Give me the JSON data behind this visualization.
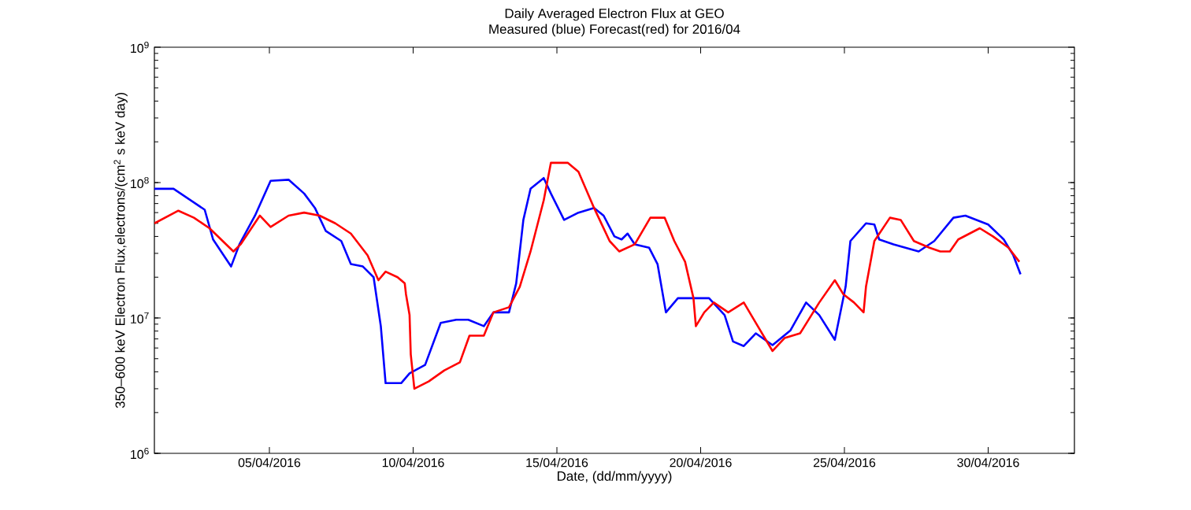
{
  "chart_data": {
    "type": "line",
    "title": "Daily Averaged Electron Flux at GEO",
    "subtitle": "Measured (blue) Forecast(red) for 2016/04",
    "xlabel": "Date, (dd/mm/yyyy)",
    "ylabel": "350–600 keV Electron Flux,electrons/(cm$^{2}$ s keV day)",
    "log": "y",
    "xlim": [
      "2016-04-01",
      "2016-05-03"
    ],
    "xticks": [
      {
        "value": "2016-04-05",
        "label": "05/04/2016"
      },
      {
        "value": "2016-04-10",
        "label": "10/04/2016"
      },
      {
        "value": "2016-04-15",
        "label": "15/04/2016"
      },
      {
        "value": "2016-04-20",
        "label": "20/04/2016"
      },
      {
        "value": "2016-04-25",
        "label": "25/04/2016"
      },
      {
        "value": "2016-04-30",
        "label": "30/04/2016"
      }
    ],
    "ylim": [
      1000000,
      1000000000
    ],
    "yticks": [
      {
        "value": 1000000,
        "label": "10$^{6}$"
      },
      {
        "value": 10000000,
        "label": "10$^{7}$"
      },
      {
        "value": 100000000,
        "label": "10$^{8}$"
      },
      {
        "value": 1000000000,
        "label": "10$^{9}$"
      }
    ],
    "series": [
      {
        "color": "#0000ff",
        "x": [
          "2016-04-01T00:00",
          "2016-04-01T16:00",
          "2016-04-02T18:00",
          "2016-04-03T01:00",
          "2016-04-03T16:00",
          "2016-04-03T23:00",
          "2016-04-04T12:00",
          "2016-04-05T01:00",
          "2016-04-05T16:00",
          "2016-04-06T05:00",
          "2016-04-06T14:00",
          "2016-04-06T23:00",
          "2016-04-07T12:00",
          "2016-04-07T20:00",
          "2016-04-08T06:00",
          "2016-04-08T15:00",
          "2016-04-08T21:00",
          "2016-04-09T01:00",
          "2016-04-09T14:00",
          "2016-04-09T21:00",
          "2016-04-10T10:00",
          "2016-04-10T23:00",
          "2016-04-11T12:00",
          "2016-04-11T22:00",
          "2016-04-12T11:00",
          "2016-04-12T19:00",
          "2016-04-13T08:00",
          "2016-04-13T14:00",
          "2016-04-13T20:00",
          "2016-04-14T02:00",
          "2016-04-14T13:00",
          "2016-04-14T19:00",
          "2016-04-15T06:00",
          "2016-04-15T18:00",
          "2016-04-16T07:00",
          "2016-04-16T15:00",
          "2016-04-17T00:00",
          "2016-04-17T06:00",
          "2016-04-17T11:00",
          "2016-04-17T17:00",
          "2016-04-18T05:00",
          "2016-04-18T12:00",
          "2016-04-18T19:00",
          "2016-04-19T05:00",
          "2016-04-20T07:00",
          "2016-04-20T20:00",
          "2016-04-21T03:00",
          "2016-04-21T12:00",
          "2016-04-21T22:00",
          "2016-04-22T12:00",
          "2016-04-23T03:00",
          "2016-04-23T16:00",
          "2016-04-24T03:00",
          "2016-04-24T16:00",
          "2016-04-25T01:00",
          "2016-04-25T05:00",
          "2016-04-25T18:00",
          "2016-04-26T01:00",
          "2016-04-26T05:00",
          "2016-04-26T17:00",
          "2016-04-27T14:00",
          "2016-04-28T03:00",
          "2016-04-28T19:00",
          "2016-04-29T05:00",
          "2016-04-30T00:00",
          "2016-04-30T13:00",
          "2016-04-30T21:00",
          "2016-05-01T03:00"
        ],
        "values": [
          90000000,
          90000000,
          63000000,
          38000000,
          24000000,
          35000000,
          57000000,
          103000000,
          105000000,
          83000000,
          65000000,
          44000000,
          37000000,
          25000000,
          24000000,
          20000000,
          8700000,
          3300000,
          3300000,
          3900000,
          4500000,
          9200000,
          9700000,
          9700000,
          8700000,
          11000000,
          11000000,
          18000000,
          53000000,
          90000000,
          108000000,
          83000000,
          53000000,
          60000000,
          65000000,
          57000000,
          40000000,
          38000000,
          42000000,
          35000000,
          33000000,
          25000000,
          11000000,
          14000000,
          14000000,
          10500000,
          6700000,
          6200000,
          7700000,
          6300000,
          8100000,
          13000000,
          10500000,
          6900000,
          17000000,
          37000000,
          50000000,
          49000000,
          38000000,
          35000000,
          31000000,
          37000000,
          55000000,
          57000000,
          49000000,
          38000000,
          29000000,
          21000000
        ]
      },
      {
        "color": "#ff0000",
        "x": [
          "2016-04-01T00:00",
          "2016-04-01T20:00",
          "2016-04-02T09:00",
          "2016-04-02T22:00",
          "2016-04-03T18:00",
          "2016-04-04T00:00",
          "2016-04-04T16:00",
          "2016-04-05T01:00",
          "2016-04-05T16:00",
          "2016-04-06T05:00",
          "2016-04-06T18:00",
          "2016-04-07T07:00",
          "2016-04-07T20:00",
          "2016-04-08T10:00",
          "2016-04-08T19:00",
          "2016-04-09T01:00",
          "2016-04-09T11:00",
          "2016-04-09T17:00",
          "2016-04-09T18:00",
          "2016-04-09T21:00",
          "2016-04-09T22:00",
          "2016-04-10T01:00",
          "2016-04-10T13:00",
          "2016-04-11T02:00",
          "2016-04-11T15:00",
          "2016-04-11T23:00",
          "2016-04-12T11:00",
          "2016-04-12T19:00",
          "2016-04-13T08:00",
          "2016-04-13T17:00",
          "2016-04-14T02:00",
          "2016-04-14T13:00",
          "2016-04-14T19:00",
          "2016-04-15T09:00",
          "2016-04-15T18:00",
          "2016-04-16T07:00",
          "2016-04-16T20:00",
          "2016-04-17T04:00",
          "2016-04-17T17:00",
          "2016-04-18T06:00",
          "2016-04-18T18:00",
          "2016-04-19T02:00",
          "2016-04-19T11:00",
          "2016-04-19T18:00",
          "2016-04-19T20:00",
          "2016-04-20T03:00",
          "2016-04-20T11:00",
          "2016-04-20T23:00",
          "2016-04-21T12:00",
          "2016-04-21T22:00",
          "2016-04-22T12:00",
          "2016-04-22T22:00",
          "2016-04-23T11:00",
          "2016-04-24T03:00",
          "2016-04-24T16:00",
          "2016-04-24T23:00",
          "2016-04-25T08:00",
          "2016-04-25T16:00",
          "2016-04-25T18:00",
          "2016-04-26T01:00",
          "2016-04-26T14:00",
          "2016-04-26T23:00",
          "2016-04-27T10:00",
          "2016-04-27T23:00",
          "2016-04-28T08:00",
          "2016-04-28T16:00",
          "2016-04-28T23:00",
          "2016-04-29T17:00",
          "2016-04-30T04:00",
          "2016-04-30T17:00",
          "2016-05-01T02:00"
        ],
        "values": [
          50000000,
          62000000,
          55000000,
          46000000,
          31000000,
          35000000,
          57000000,
          47000000,
          57000000,
          60000000,
          57000000,
          50000000,
          42000000,
          29000000,
          19000000,
          22000000,
          20000000,
          18000000,
          15000000,
          10500000,
          5400000,
          3000000,
          3400000,
          4100000,
          4700000,
          7400000,
          7400000,
          11000000,
          12000000,
          17000000,
          31000000,
          74000000,
          140000000,
          140000000,
          120000000,
          65000000,
          37000000,
          31000000,
          35000000,
          55000000,
          55000000,
          37000000,
          26000000,
          14000000,
          8700000,
          11000000,
          13000000,
          11000000,
          13000000,
          9200000,
          5700000,
          7100000,
          7700000,
          13000000,
          19000000,
          15000000,
          13000000,
          11000000,
          17000000,
          37000000,
          55000000,
          53000000,
          37000000,
          33000000,
          31000000,
          31000000,
          38000000,
          46000000,
          40000000,
          33000000,
          26000000
        ]
      }
    ]
  }
}
